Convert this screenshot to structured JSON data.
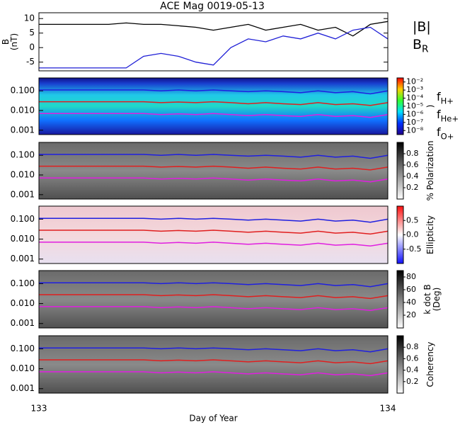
{
  "chart_data": [
    {
      "type": "line",
      "title": "ACE Mag 0019-05-13",
      "ylabel": "B",
      "ylabel_unit": "(nT)",
      "x": [
        133,
        133.05,
        133.1,
        133.15,
        133.2,
        133.25,
        133.3,
        133.35,
        133.4,
        133.45,
        133.5,
        133.55,
        133.6,
        133.65,
        133.7,
        133.75,
        133.8,
        133.85,
        133.9,
        133.95,
        134
      ],
      "xlim": [
        133,
        134
      ],
      "ylim": [
        -8,
        12
      ],
      "yticks": [
        -5,
        0,
        5,
        10
      ],
      "series": [
        {
          "name": "|B|",
          "color": "#000000",
          "values": [
            8,
            8,
            8,
            8,
            8,
            8.5,
            8,
            8,
            7.5,
            7,
            6,
            7,
            8,
            6,
            7,
            8,
            6,
            7,
            4,
            8,
            9
          ]
        },
        {
          "name": "B",
          "subscript": "R",
          "color": "#1f1fd6",
          "values": [
            -7,
            -7,
            -7,
            -7,
            -7,
            -7,
            -3,
            -2,
            -3,
            -5,
            -6,
            0,
            3,
            2,
            4,
            3,
            5,
            3,
            6,
            7,
            3
          ]
        }
      ]
    },
    {
      "type": "spectrogram",
      "log": true,
      "xlim": [
        133,
        134
      ],
      "ylim": [
        0.0006,
        0.45
      ],
      "yticks": [
        0.001,
        {
          "value": 0.01,
          "label": "0.010"
        },
        {
          "value": 0.1,
          "label": "0.100"
        }
      ],
      "colormap": "rainbow",
      "colorbar_label": ")",
      "clim": [
        -8.5,
        -1.5
      ],
      "colorbar_ticks": [
        {
          "value": -2,
          "label": "10⁻²"
        },
        {
          "value": -3,
          "label": "10⁻³"
        },
        {
          "value": -4,
          "label": "10⁻⁴"
        },
        {
          "value": -5,
          "label": "10⁻⁵"
        },
        {
          "value": -6,
          "label": "10⁻⁶"
        },
        {
          "value": -7,
          "label": "10⁻⁷"
        },
        {
          "value": -8,
          "label": "10⁻⁸"
        }
      ],
      "x": [
        133,
        133.05,
        133.1,
        133.15,
        133.2,
        133.25,
        133.3,
        133.35,
        133.4,
        133.45,
        133.5,
        133.55,
        133.6,
        133.65,
        133.7,
        133.75,
        133.8,
        133.85,
        133.9,
        133.95,
        134
      ],
      "series": [
        {
          "name": "f",
          "subscript": "H+",
          "color": "#1f1fe0",
          "values": [
            0.11,
            0.11,
            0.11,
            0.11,
            0.11,
            0.11,
            0.11,
            0.1,
            0.11,
            0.1,
            0.11,
            0.1,
            0.09,
            0.1,
            0.09,
            0.08,
            0.1,
            0.08,
            0.09,
            0.07,
            0.1
          ]
        },
        {
          "name": "f",
          "subscript": "He+",
          "color": "#e01f1f",
          "values": [
            0.028,
            0.028,
            0.028,
            0.028,
            0.028,
            0.028,
            0.028,
            0.025,
            0.027,
            0.025,
            0.028,
            0.025,
            0.022,
            0.025,
            0.022,
            0.02,
            0.025,
            0.02,
            0.022,
            0.018,
            0.025
          ]
        },
        {
          "name": "f",
          "subscript": "O+",
          "color": "#e01fe0",
          "values": [
            0.007,
            0.007,
            0.007,
            0.007,
            0.007,
            0.007,
            0.007,
            0.0062,
            0.0068,
            0.0062,
            0.007,
            0.0062,
            0.0055,
            0.0062,
            0.0055,
            0.005,
            0.0062,
            0.005,
            0.0055,
            0.0045,
            0.0062
          ]
        }
      ]
    },
    {
      "type": "spectrogram",
      "log": true,
      "xlim": [
        133,
        134
      ],
      "ylim": [
        0.0006,
        0.45
      ],
      "yticks": [
        0.001,
        {
          "value": 0.01,
          "label": "0.010"
        },
        {
          "value": 0.1,
          "label": "0.100"
        }
      ],
      "colormap": "gray",
      "colorbar_label": "% Polarization",
      "clim": [
        0,
        1
      ],
      "colorbar_ticks": [
        0.2,
        0.4,
        0.6,
        0.8
      ]
    },
    {
      "type": "spectrogram",
      "log": true,
      "xlim": [
        133,
        134
      ],
      "ylim": [
        0.0006,
        0.45
      ],
      "yticks": [
        0.001,
        {
          "value": 0.01,
          "label": "0.010"
        },
        {
          "value": 0.1,
          "label": "0.100"
        }
      ],
      "colormap": "bwr",
      "colorbar_label": "Ellipticity",
      "clim": [
        -1,
        1
      ],
      "colorbar_ticks": [
        -0.5,
        {
          "value": 0,
          "label": "0.0"
        },
        0.5
      ]
    },
    {
      "type": "spectrogram",
      "log": true,
      "xlim": [
        133,
        134
      ],
      "ylim": [
        0.0006,
        0.45
      ],
      "yticks": [
        0.001,
        {
          "value": 0.01,
          "label": "0.010"
        },
        {
          "value": 0.1,
          "label": "0.100"
        }
      ],
      "colormap": "gray",
      "colorbar_label": "k dot B",
      "colorbar_unit": "(Deg)",
      "clim": [
        0,
        90
      ],
      "colorbar_ticks": [
        20,
        40,
        60,
        80
      ]
    },
    {
      "type": "spectrogram",
      "log": true,
      "xlim": [
        133,
        134
      ],
      "ylim": [
        0.0006,
        0.45
      ],
      "yticks": [
        0.001,
        {
          "value": 0.01,
          "label": "0.010"
        },
        {
          "value": 0.1,
          "label": "0.100"
        }
      ],
      "colormap": "gray",
      "colorbar_label": "Coherency",
      "clim": [
        0,
        1
      ],
      "colorbar_ticks": [
        0.2,
        0.4,
        0.6,
        0.8
      ],
      "xlabel": "Day of Year",
      "xticks": [
        133,
        134
      ]
    }
  ]
}
